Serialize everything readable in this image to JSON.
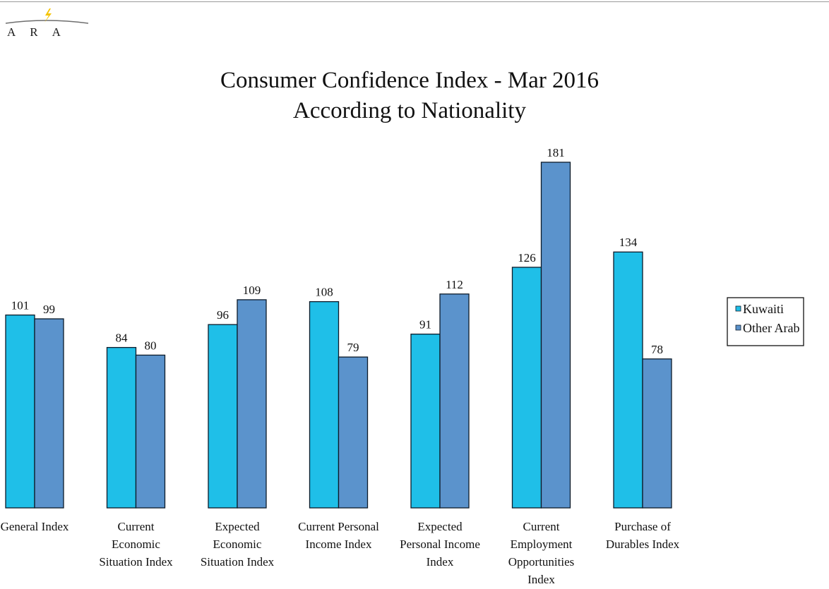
{
  "logo": {
    "text": "ARA",
    "accent_color": "#f5c400"
  },
  "chart_data": {
    "type": "bar",
    "title": "Consumer Confidence Index - Mar 2016",
    "subtitle": "According to Nationality",
    "categories": [
      [
        "General Index"
      ],
      [
        "Current",
        "Economic",
        "Situation Index"
      ],
      [
        "Expected",
        "Economic",
        "Situation Index"
      ],
      [
        "Current Personal",
        "Income Index"
      ],
      [
        "Expected",
        "Personal Income",
        "Index"
      ],
      [
        "Current",
        "Employment",
        "Opportunities",
        "Index"
      ],
      [
        "Purchase of",
        "Durables Index"
      ]
    ],
    "series": [
      {
        "name": "Kuwaiti",
        "color": "#1fbfe8",
        "values": [
          101,
          84,
          96,
          108,
          91,
          126,
          134
        ]
      },
      {
        "name": "Other Arab",
        "color": "#5b93cc",
        "values": [
          99,
          80,
          109,
          79,
          112,
          181,
          78
        ]
      }
    ],
    "ylim": [
      0,
      181
    ],
    "grid": false,
    "legend_position": "right"
  }
}
